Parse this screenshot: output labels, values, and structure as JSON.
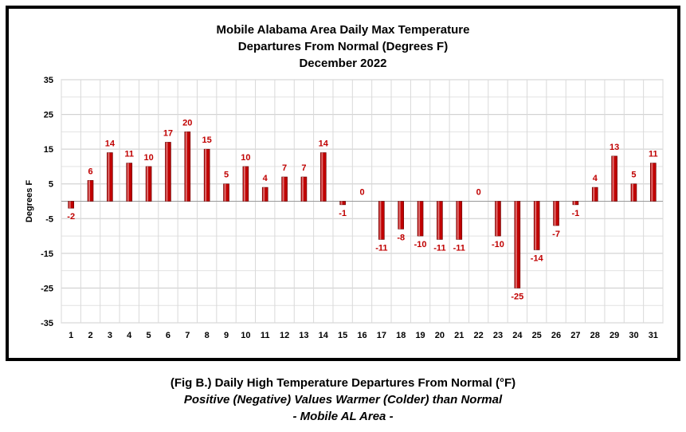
{
  "chart_data": {
    "type": "bar",
    "title_lines": [
      "Mobile Alabama Area Daily Max Temperature",
      "Departures From Normal (Degrees F)",
      "December 2022"
    ],
    "ylabel": "Degrees F",
    "xlabel": "",
    "ylim": [
      -35,
      35
    ],
    "yticks": [
      35,
      25,
      15,
      5,
      -5,
      -15,
      -25,
      -35
    ],
    "grid": true,
    "bar_color": "#c00000",
    "label_color": "#c00000",
    "categories": [
      "1",
      "2",
      "3",
      "4",
      "5",
      "6",
      "7",
      "8",
      "9",
      "10",
      "11",
      "12",
      "13",
      "14",
      "15",
      "16",
      "17",
      "18",
      "19",
      "20",
      "21",
      "22",
      "23",
      "24",
      "25",
      "26",
      "27",
      "28",
      "29",
      "30",
      "31"
    ],
    "values": [
      -2,
      6,
      14,
      11,
      10,
      17,
      20,
      15,
      5,
      10,
      4,
      7,
      7,
      14,
      -1,
      0,
      -11,
      -8,
      -10,
      -11,
      -11,
      0,
      -10,
      -25,
      -14,
      -7,
      -1,
      4,
      13,
      5,
      11
    ]
  },
  "caption": {
    "line1": "(Fig B.) Daily High Temperature Departures From Normal (°F)",
    "line2": "Positive (Negative) Values Warmer (Colder) than Normal",
    "line3": "- Mobile AL Area -"
  }
}
